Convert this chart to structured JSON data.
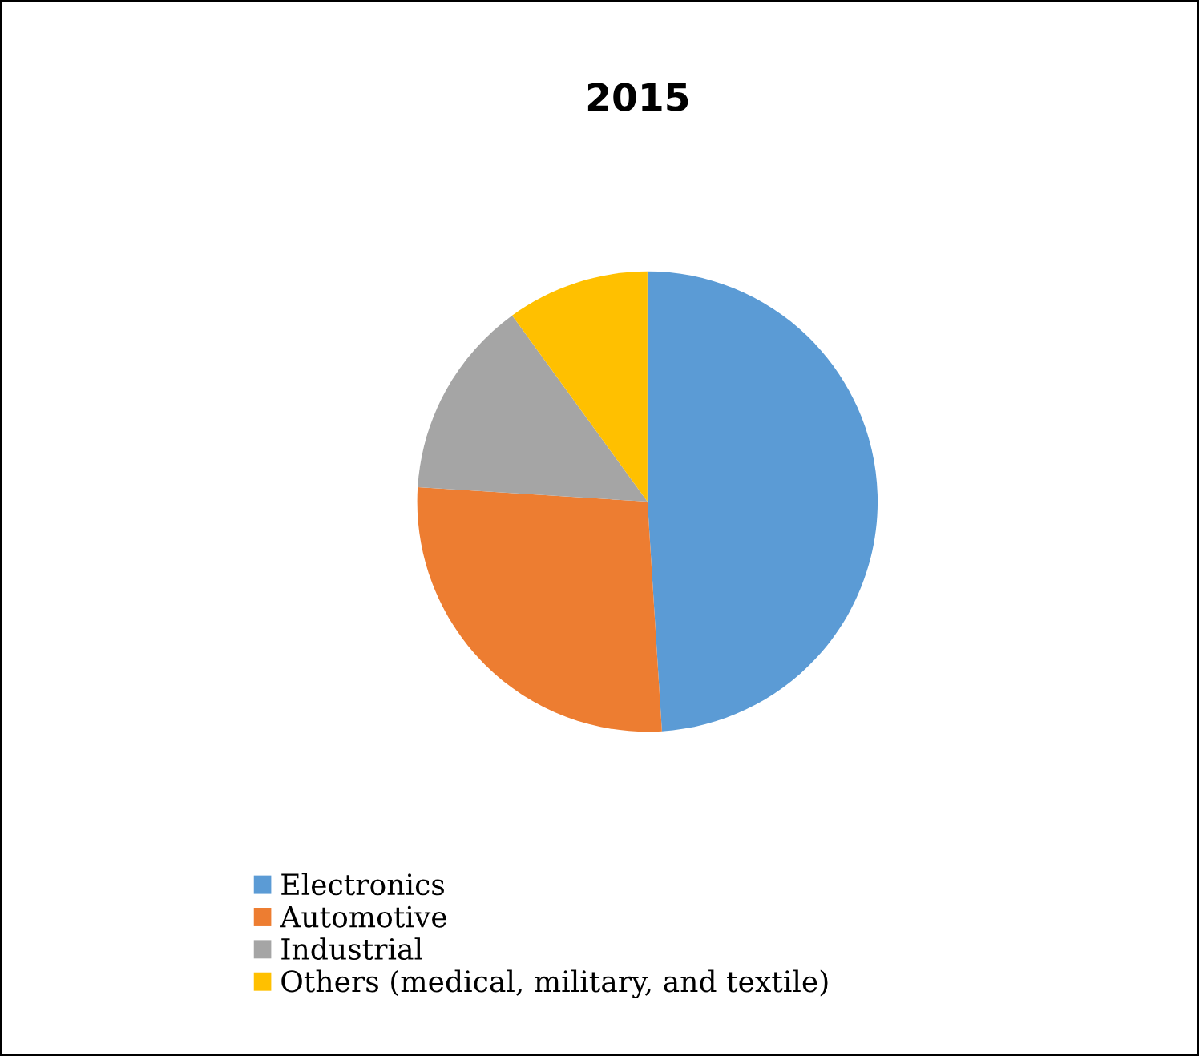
{
  "chart_data": {
    "type": "pie",
    "title": "2015",
    "categories": [
      "Electronics",
      "Automotive",
      "Industrial",
      "Others (medical, military, and textile)"
    ],
    "values": [
      49,
      27,
      14,
      10
    ],
    "colors": [
      "#5b9bd5",
      "#ed7d31",
      "#a5a5a5",
      "#ffc000"
    ],
    "legend": "bottom left"
  }
}
